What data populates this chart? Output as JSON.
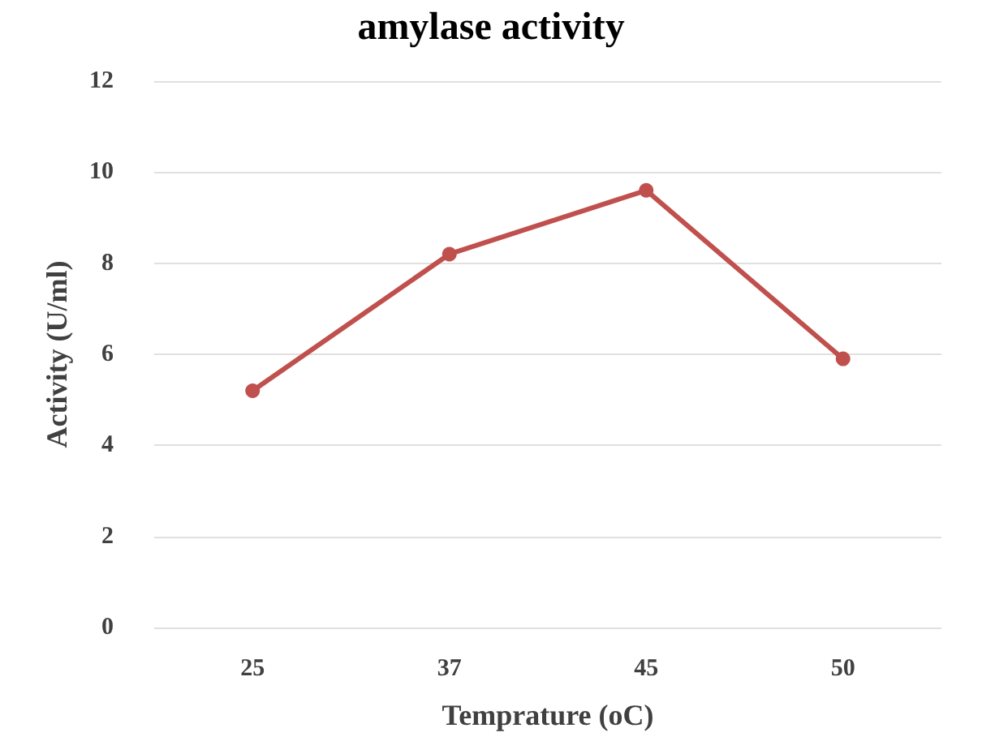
{
  "chart_data": {
    "type": "line",
    "title": "amylase activity",
    "xlabel": "Temprature (oC)",
    "ylabel": "Activity (U/ml)",
    "categories": [
      "25",
      "37",
      "45",
      "50"
    ],
    "series": [
      {
        "color": "#c0504d",
        "values": [
          5.2,
          8.2,
          9.6,
          5.9
        ]
      }
    ],
    "ylim": [
      0,
      12
    ],
    "yticks": [
      0,
      2,
      4,
      6,
      8,
      10,
      12
    ],
    "grid": "y",
    "marker": "circle",
    "line_style": "solid"
  }
}
